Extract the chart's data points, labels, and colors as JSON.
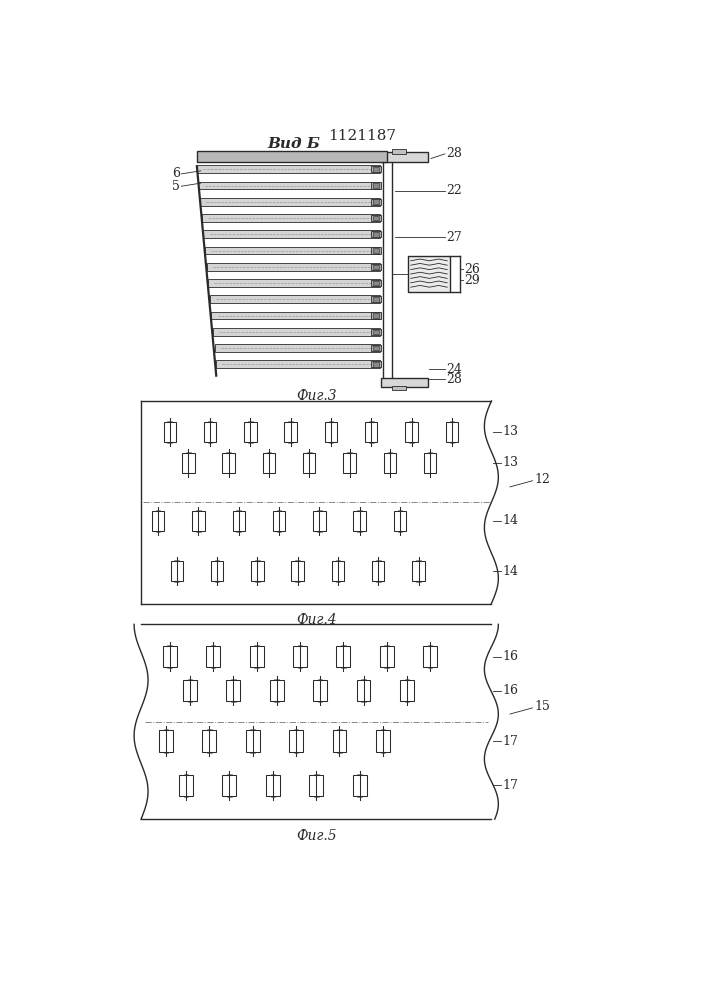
{
  "title": "1121187",
  "fig3_label": "Фиг.3",
  "fig4_label": "Фиг.4",
  "fig5_label": "Фиг.5",
  "vid_label": "Вид Б",
  "bg_color": "#ffffff",
  "line_color": "#2a2a2a",
  "lw_thin": 0.6,
  "lw_med": 1.0,
  "lw_thick": 1.6
}
